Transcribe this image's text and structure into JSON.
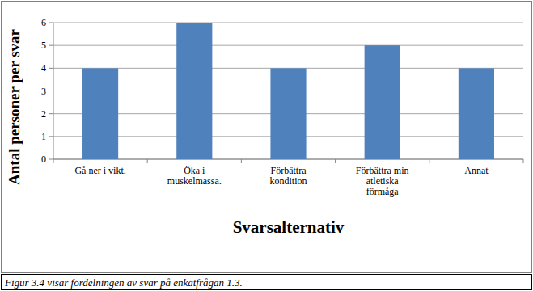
{
  "chart_data": {
    "type": "bar",
    "y_label": "Antal personer per svar",
    "x_label": "Svarsalternativ",
    "caption": "Figur 3.4 visar fördelningen av svar på enkätfrågan 1.3.",
    "categories": [
      "Gå ner i vikt.",
      "Öka i muskelmassa.",
      "Förbättra kondition",
      "Förbättra min atletiska förmåga",
      "Annat"
    ],
    "values": [
      4,
      6,
      4,
      5,
      4
    ],
    "color": "#4f81bd",
    "ylim": [
      0,
      6
    ],
    "yticks": [
      0,
      1,
      2,
      3,
      4,
      5,
      6
    ],
    "grid": true
  }
}
